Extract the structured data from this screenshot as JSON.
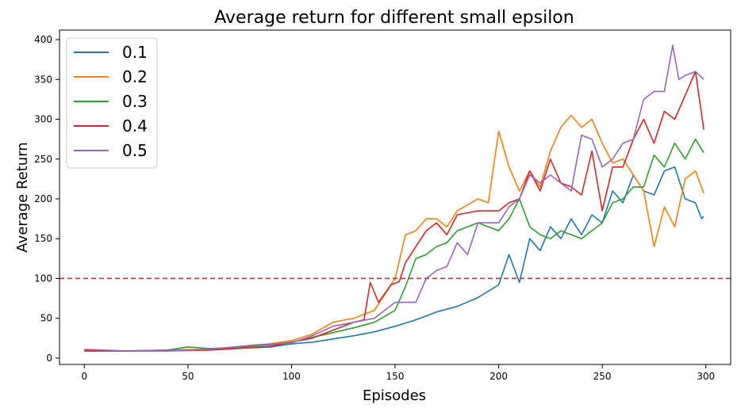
{
  "chart_data": {
    "type": "line",
    "title": "Average return for different small epsilon",
    "xlabel": "Episodes",
    "ylabel": "Average Return",
    "xlim": [
      -12,
      312
    ],
    "ylim": [
      -8,
      412
    ],
    "xticks": [
      0,
      50,
      100,
      150,
      200,
      250,
      300
    ],
    "yticks": [
      0,
      50,
      100,
      150,
      200,
      250,
      300,
      350,
      400
    ],
    "grid": false,
    "legend_position": "top-left",
    "reference_line": {
      "y": 100,
      "color": "#d62728",
      "style": "dashed"
    },
    "series": [
      {
        "name": "0.1",
        "color": "#1f77b4",
        "points": [
          [
            0,
            10
          ],
          [
            20,
            9
          ],
          [
            40,
            10
          ],
          [
            60,
            11
          ],
          [
            70,
            12
          ],
          [
            80,
            13
          ],
          [
            90,
            14
          ],
          [
            100,
            18
          ],
          [
            110,
            20
          ],
          [
            120,
            24
          ],
          [
            130,
            28
          ],
          [
            140,
            33
          ],
          [
            150,
            40
          ],
          [
            160,
            48
          ],
          [
            170,
            58
          ],
          [
            180,
            65
          ],
          [
            190,
            76
          ],
          [
            200,
            92
          ],
          [
            205,
            130
          ],
          [
            210,
            95
          ],
          [
            215,
            150
          ],
          [
            220,
            135
          ],
          [
            225,
            165
          ],
          [
            230,
            150
          ],
          [
            235,
            175
          ],
          [
            240,
            155
          ],
          [
            245,
            180
          ],
          [
            250,
            170
          ],
          [
            255,
            210
          ],
          [
            260,
            195
          ],
          [
            265,
            230
          ],
          [
            270,
            210
          ],
          [
            275,
            205
          ],
          [
            280,
            235
          ],
          [
            285,
            240
          ],
          [
            290,
            200
          ],
          [
            295,
            195
          ],
          [
            298,
            175
          ],
          [
            299,
            178
          ]
        ]
      },
      {
        "name": "0.2",
        "color": "#ff7f0e",
        "points": [
          [
            0,
            10
          ],
          [
            20,
            9
          ],
          [
            40,
            10
          ],
          [
            60,
            11
          ],
          [
            80,
            14
          ],
          [
            100,
            22
          ],
          [
            110,
            30
          ],
          [
            120,
            45
          ],
          [
            130,
            50
          ],
          [
            140,
            60
          ],
          [
            145,
            80
          ],
          [
            150,
            100
          ],
          [
            155,
            155
          ],
          [
            160,
            160
          ],
          [
            165,
            175
          ],
          [
            170,
            175
          ],
          [
            175,
            165
          ],
          [
            180,
            185
          ],
          [
            190,
            200
          ],
          [
            195,
            195
          ],
          [
            200,
            285
          ],
          [
            205,
            240
          ],
          [
            210,
            210
          ],
          [
            215,
            235
          ],
          [
            220,
            215
          ],
          [
            225,
            260
          ],
          [
            230,
            290
          ],
          [
            235,
            305
          ],
          [
            240,
            290
          ],
          [
            245,
            300
          ],
          [
            250,
            270
          ],
          [
            255,
            245
          ],
          [
            260,
            250
          ],
          [
            265,
            230
          ],
          [
            270,
            210
          ],
          [
            275,
            140
          ],
          [
            280,
            190
          ],
          [
            285,
            165
          ],
          [
            290,
            225
          ],
          [
            295,
            235
          ],
          [
            299,
            207
          ]
        ]
      },
      {
        "name": "0.3",
        "color": "#2ca02c",
        "points": [
          [
            0,
            9
          ],
          [
            20,
            9
          ],
          [
            40,
            10
          ],
          [
            50,
            14
          ],
          [
            60,
            12
          ],
          [
            70,
            13
          ],
          [
            80,
            15
          ],
          [
            90,
            17
          ],
          [
            100,
            20
          ],
          [
            110,
            26
          ],
          [
            120,
            32
          ],
          [
            130,
            38
          ],
          [
            140,
            45
          ],
          [
            150,
            60
          ],
          [
            155,
            90
          ],
          [
            160,
            125
          ],
          [
            165,
            130
          ],
          [
            170,
            140
          ],
          [
            175,
            145
          ],
          [
            180,
            160
          ],
          [
            190,
            170
          ],
          [
            200,
            160
          ],
          [
            205,
            175
          ],
          [
            210,
            200
          ],
          [
            215,
            165
          ],
          [
            220,
            155
          ],
          [
            225,
            150
          ],
          [
            230,
            160
          ],
          [
            240,
            150
          ],
          [
            250,
            170
          ],
          [
            255,
            195
          ],
          [
            260,
            200
          ],
          [
            265,
            215
          ],
          [
            270,
            215
          ],
          [
            275,
            255
          ],
          [
            280,
            240
          ],
          [
            285,
            270
          ],
          [
            290,
            250
          ],
          [
            295,
            275
          ],
          [
            299,
            258
          ]
        ]
      },
      {
        "name": "0.4",
        "color": "#d62728",
        "points": [
          [
            0,
            9
          ],
          [
            20,
            9
          ],
          [
            40,
            9
          ],
          [
            60,
            10
          ],
          [
            80,
            13
          ],
          [
            90,
            15
          ],
          [
            100,
            20
          ],
          [
            110,
            25
          ],
          [
            120,
            35
          ],
          [
            130,
            45
          ],
          [
            135,
            48
          ],
          [
            138,
            95
          ],
          [
            142,
            70
          ],
          [
            148,
            92
          ],
          [
            152,
            96
          ],
          [
            155,
            120
          ],
          [
            160,
            140
          ],
          [
            165,
            160
          ],
          [
            170,
            170
          ],
          [
            175,
            155
          ],
          [
            180,
            180
          ],
          [
            190,
            185
          ],
          [
            200,
            185
          ],
          [
            205,
            195
          ],
          [
            210,
            200
          ],
          [
            215,
            235
          ],
          [
            220,
            210
          ],
          [
            225,
            250
          ],
          [
            230,
            220
          ],
          [
            235,
            215
          ],
          [
            240,
            205
          ],
          [
            245,
            260
          ],
          [
            250,
            185
          ],
          [
            255,
            240
          ],
          [
            260,
            240
          ],
          [
            265,
            275
          ],
          [
            270,
            300
          ],
          [
            275,
            270
          ],
          [
            280,
            310
          ],
          [
            285,
            300
          ],
          [
            290,
            330
          ],
          [
            295,
            360
          ],
          [
            299,
            287
          ]
        ]
      },
      {
        "name": "0.5",
        "color": "#9467bd",
        "points": [
          [
            0,
            11
          ],
          [
            20,
            9
          ],
          [
            40,
            9
          ],
          [
            60,
            11
          ],
          [
            80,
            16
          ],
          [
            90,
            18
          ],
          [
            100,
            19
          ],
          [
            110,
            28
          ],
          [
            120,
            40
          ],
          [
            130,
            45
          ],
          [
            140,
            50
          ],
          [
            150,
            70
          ],
          [
            160,
            70
          ],
          [
            165,
            100
          ],
          [
            170,
            110
          ],
          [
            175,
            115
          ],
          [
            180,
            145
          ],
          [
            185,
            130
          ],
          [
            190,
            170
          ],
          [
            200,
            170
          ],
          [
            205,
            190
          ],
          [
            210,
            200
          ],
          [
            215,
            230
          ],
          [
            220,
            220
          ],
          [
            225,
            230
          ],
          [
            230,
            220
          ],
          [
            235,
            210
          ],
          [
            240,
            280
          ],
          [
            245,
            275
          ],
          [
            250,
            240
          ],
          [
            255,
            250
          ],
          [
            260,
            270
          ],
          [
            265,
            275
          ],
          [
            270,
            325
          ],
          [
            275,
            335
          ],
          [
            280,
            335
          ],
          [
            284,
            393
          ],
          [
            287,
            350
          ],
          [
            290,
            355
          ],
          [
            295,
            360
          ],
          [
            299,
            350
          ]
        ]
      }
    ]
  }
}
